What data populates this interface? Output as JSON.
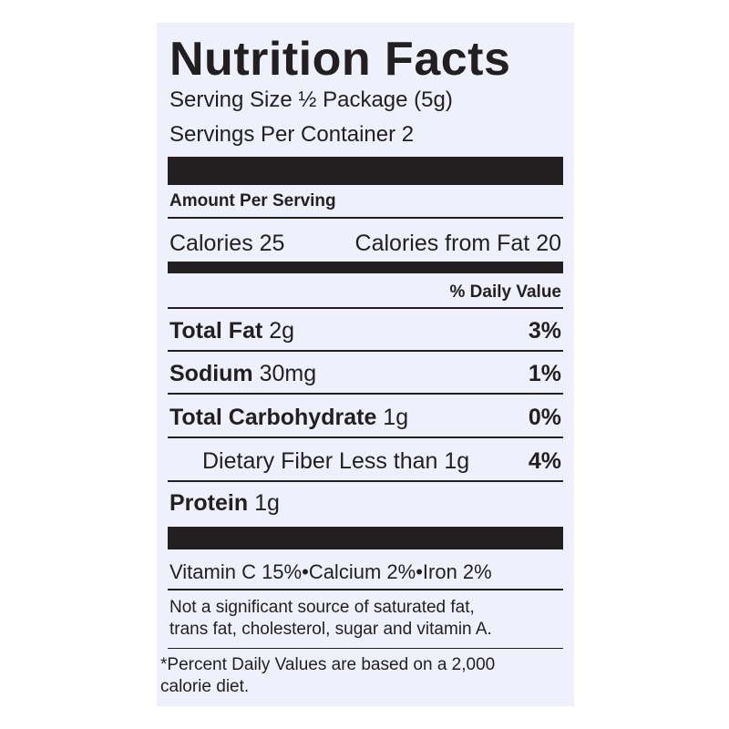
{
  "label": {
    "title": "Nutrition Facts",
    "serving_size": "Serving Size ½ Package (5g)",
    "servings": "Servings Per Container 2",
    "amount_per_serving": "Amount Per Serving",
    "calories": "Calories 25",
    "calories_from_fat": "Calories from Fat 20",
    "daily_value_header": "% Daily Value",
    "nutrients": [
      {
        "name": "Total Fat",
        "amount": "2g",
        "dv": "3%"
      },
      {
        "name": "Sodium",
        "amount": "30mg",
        "dv": "1%"
      },
      {
        "name": "Total Carbohydrate",
        "amount": "1g",
        "dv": "0%"
      },
      {
        "name": "Dietary Fiber",
        "amount": "Less than 1g",
        "dv": "4%"
      },
      {
        "name": "Protein",
        "amount": "1g"
      }
    ],
    "vitamins": [
      "Vitamin C 15%",
      "Calcium 2%",
      "Iron 2%"
    ],
    "separator": "•",
    "note_lines": [
      "Not a significant source of saturated fat,",
      "trans fat, cholesterol, sugar and vitamin A."
    ],
    "footnote_lines": [
      "*Percent Daily Values are based on a 2,000",
      "calorie diet."
    ]
  }
}
